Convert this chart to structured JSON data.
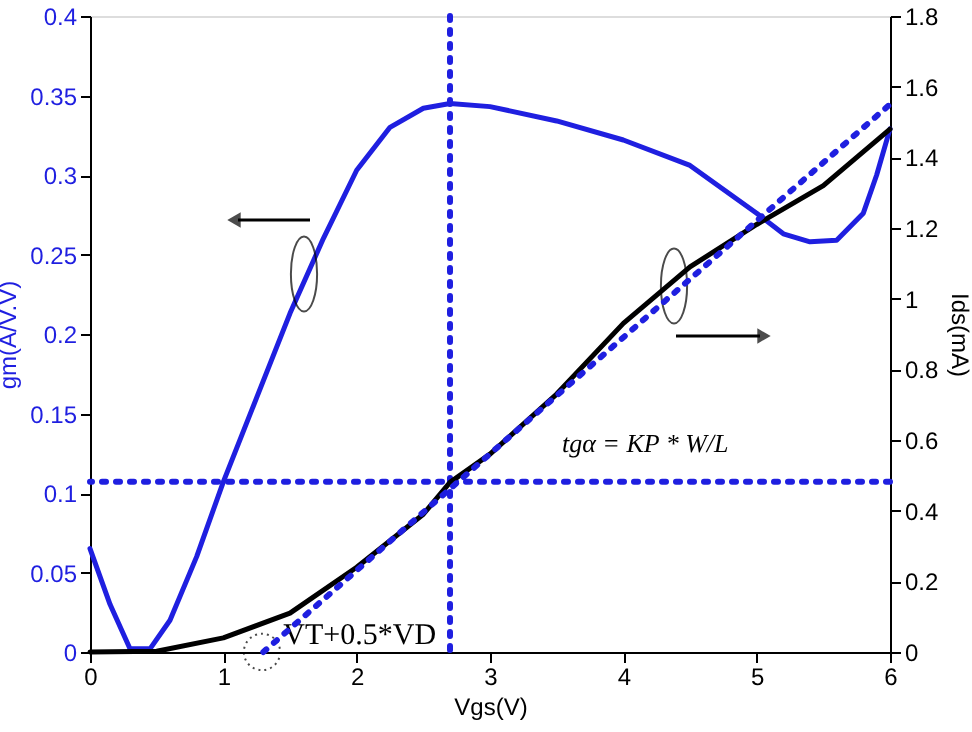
{
  "chart_data": {
    "type": "line",
    "xlabel": "Vgs(V)",
    "ylabel": "gm(A/V.V)",
    "y2label": "Ids(mA)",
    "xlim": [
      0,
      6
    ],
    "xticks": [
      0,
      1,
      2,
      3,
      4,
      5,
      6
    ],
    "ylim": [
      0,
      0.4
    ],
    "yticks": [
      0,
      0.05,
      0.1,
      0.15,
      0.2,
      0.25,
      0.3,
      0.35,
      0.4
    ],
    "y2lim": [
      0,
      1.8
    ],
    "y2ticks": [
      0,
      0.2,
      0.4,
      0.6,
      0.8,
      1,
      1.2,
      1.4,
      1.6,
      1.8
    ],
    "grid": false,
    "line_style": "solid",
    "series": [
      {
        "color": "#1f1fe0",
        "x": [
          0,
          0.15,
          0.3,
          0.45,
          0.6,
          0.8,
          1,
          1.25,
          1.5,
          1.75,
          2,
          2.25,
          2.5,
          2.7,
          3,
          3.5,
          4,
          4.5,
          5,
          5.2,
          5.4,
          5.6,
          5.8,
          5.9,
          6
        ],
        "values": [
          0.065,
          0.03,
          0.002,
          0.002,
          0.02,
          0.06,
          0.107,
          0.16,
          0.213,
          0.26,
          0.303,
          0.33,
          0.342,
          0.345,
          0.343,
          0.334,
          0.322,
          0.306,
          0.276,
          0.263,
          0.258,
          0.259,
          0.276,
          0.3,
          0.329
        ]
      },
      {
        "color": "#000000",
        "axis": "y2",
        "x": [
          0,
          0.5,
          1,
          1.5,
          2,
          2.5,
          2.7,
          3,
          3.5,
          4,
          4.5,
          5,
          5.5,
          6
        ],
        "values": [
          0,
          0.002,
          0.04,
          0.11,
          0.24,
          0.39,
          0.48,
          0.56,
          0.73,
          0.93,
          1.09,
          1.21,
          1.32,
          1.48
        ]
      },
      {
        "color": "#1f1fe0",
        "axis": "y2",
        "line_style": "dotted",
        "x": [
          1.3,
          6
        ],
        "values": [
          0,
          1.55
        ]
      }
    ],
    "ref_lines": [
      {
        "axis": "x",
        "value": 2.7,
        "color": "#1f1fe0",
        "line_style": "dotted"
      },
      {
        "axis": "y",
        "value": 0.107,
        "color": "#1f1fe0",
        "line_style": "dotted"
      }
    ],
    "annotations": [
      {
        "text": "VT+0.5*VD",
        "x": 1.3,
        "y": 0
      },
      "tgα = KP * W/L"
    ]
  }
}
